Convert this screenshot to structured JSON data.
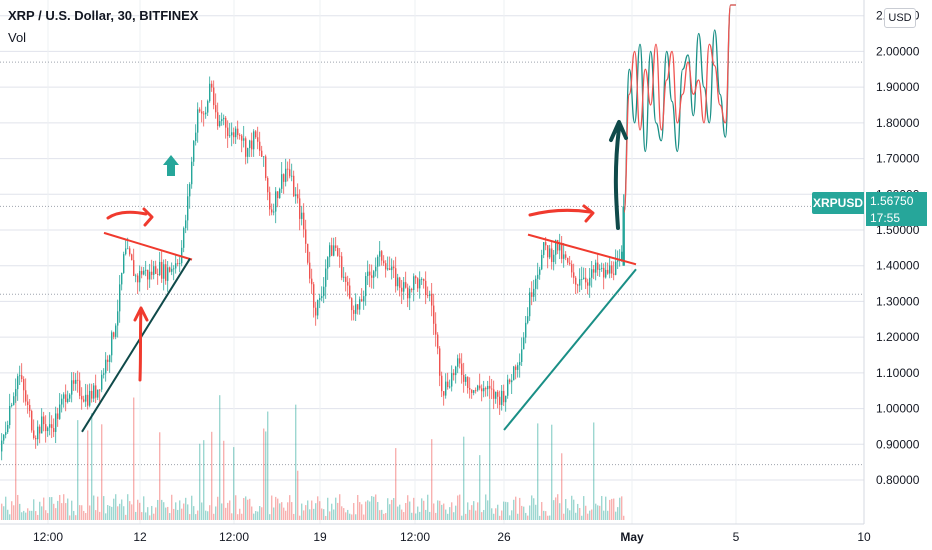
{
  "header": {
    "title": "XRP / U.S. Dollar, 30, BITFINEX",
    "indicator": "Vol"
  },
  "currency_button": "USD",
  "price_tag": {
    "symbol": "XRPUSD",
    "price": "1.56750",
    "countdown": "17:55"
  },
  "colors": {
    "up": "#26a69a",
    "down": "#ef5350",
    "drawing_red": "#f03a2e",
    "drawing_teal": "#1a8f86",
    "drawing_dark": "#0f4a4a",
    "grid": "#e0e3eb",
    "axis_text": "#131722"
  },
  "chart_data": {
    "type": "candlestick",
    "yaxis": {
      "ticks": [
        "2.10000",
        "2.00000",
        "1.90000",
        "1.80000",
        "1.70000",
        "1.60000",
        "1.50000",
        "1.40000",
        "1.30000",
        "1.20000",
        "1.10000",
        "1.00000",
        "0.90000",
        "0.80000"
      ],
      "ylim": [
        0.73,
        2.13
      ]
    },
    "xaxis": {
      "ticks": [
        "12:00",
        "12",
        "12:00",
        "19",
        "12:00",
        "26",
        "May",
        "5",
        "10"
      ]
    },
    "horizontal_levels": [
      1.97,
      1.566,
      1.32,
      0.843
    ],
    "price_path": [
      [
        0,
        0.88
      ],
      [
        10,
        1.02
      ],
      [
        18,
        1.1
      ],
      [
        26,
        1.01
      ],
      [
        34,
        0.93
      ],
      [
        42,
        0.96
      ],
      [
        50,
        0.94
      ],
      [
        58,
        0.99
      ],
      [
        66,
        1.05
      ],
      [
        76,
        1.06
      ],
      [
        86,
        1.03
      ],
      [
        96,
        1.05
      ],
      [
        104,
        1.12
      ],
      [
        112,
        1.2
      ],
      [
        118,
        1.3
      ],
      [
        124,
        1.44
      ],
      [
        130,
        1.41
      ],
      [
        136,
        1.36
      ],
      [
        142,
        1.39
      ],
      [
        148,
        1.37
      ],
      [
        156,
        1.4
      ],
      [
        164,
        1.38
      ],
      [
        172,
        1.4
      ],
      [
        180,
        1.43
      ],
      [
        186,
        1.55
      ],
      [
        192,
        1.72
      ],
      [
        198,
        1.86
      ],
      [
        204,
        1.8
      ],
      [
        210,
        1.93
      ],
      [
        216,
        1.78
      ],
      [
        222,
        1.82
      ],
      [
        230,
        1.76
      ],
      [
        238,
        1.79
      ],
      [
        246,
        1.72
      ],
      [
        254,
        1.76
      ],
      [
        262,
        1.7
      ],
      [
        270,
        1.55
      ],
      [
        278,
        1.62
      ],
      [
        286,
        1.68
      ],
      [
        294,
        1.6
      ],
      [
        302,
        1.52
      ],
      [
        308,
        1.4
      ],
      [
        314,
        1.28
      ],
      [
        320,
        1.3
      ],
      [
        326,
        1.42
      ],
      [
        334,
        1.46
      ],
      [
        342,
        1.38
      ],
      [
        350,
        1.3
      ],
      [
        358,
        1.27
      ],
      [
        366,
        1.36
      ],
      [
        374,
        1.4
      ],
      [
        382,
        1.43
      ],
      [
        390,
        1.38
      ],
      [
        398,
        1.35
      ],
      [
        406,
        1.33
      ],
      [
        414,
        1.36
      ],
      [
        422,
        1.34
      ],
      [
        430,
        1.31
      ],
      [
        436,
        1.18
      ],
      [
        442,
        1.05
      ],
      [
        450,
        1.09
      ],
      [
        458,
        1.12
      ],
      [
        466,
        1.08
      ],
      [
        474,
        1.05
      ],
      [
        482,
        1.06
      ],
      [
        490,
        1.04
      ],
      [
        498,
        1.03
      ],
      [
        506,
        1.05
      ],
      [
        514,
        1.12
      ],
      [
        520,
        1.16
      ],
      [
        526,
        1.26
      ],
      [
        532,
        1.35
      ],
      [
        538,
        1.4
      ],
      [
        544,
        1.45
      ],
      [
        550,
        1.43
      ],
      [
        556,
        1.46
      ],
      [
        562,
        1.42
      ],
      [
        568,
        1.4
      ],
      [
        574,
        1.34
      ],
      [
        580,
        1.38
      ],
      [
        588,
        1.36
      ],
      [
        596,
        1.39
      ],
      [
        604,
        1.37
      ],
      [
        612,
        1.4
      ],
      [
        618,
        1.39
      ],
      [
        622,
        1.43
      ],
      [
        624,
        1.566
      ]
    ],
    "volume_path": [
      [
        0,
        0.842
      ],
      [
        60,
        0.84
      ],
      [
        110,
        0.838
      ],
      [
        140,
        0.846
      ],
      [
        200,
        0.837
      ],
      [
        240,
        0.841
      ],
      [
        300,
        0.839
      ],
      [
        360,
        0.841
      ],
      [
        436,
        0.843
      ],
      [
        500,
        0.838
      ],
      [
        560,
        0.84
      ],
      [
        620,
        0.842
      ]
    ],
    "projection": {
      "x_start": 624,
      "x_end": 736,
      "series": [
        {
          "values": [
            1.55,
            1.95,
            1.8,
            2.02,
            1.72,
            2.0,
            1.8,
            1.75,
            2.0,
            1.86,
            1.72,
            1.95,
            1.99,
            1.82,
            2.05,
            1.9,
            1.8,
            2.06,
            1.88,
            1.76,
            2.13,
            2.13
          ]
        },
        {
          "values": [
            1.55,
            1.88,
            2.0,
            1.78,
            1.95,
            1.85,
            2.02,
            1.78,
            1.92,
            2.0,
            1.8,
            1.88,
            1.97,
            1.88,
            1.92,
            1.8,
            2.02,
            1.96,
            1.85,
            1.8,
            2.13,
            2.13
          ]
        }
      ]
    },
    "drawings": {
      "trendlines": [
        {
          "color": "red",
          "points": [
            [
              104,
              1.492
            ],
            [
              192,
              1.417
            ]
          ]
        },
        {
          "color": "dark",
          "points": [
            [
              82,
              0.935
            ],
            [
              190,
              1.42
            ]
          ]
        },
        {
          "color": "red",
          "points": [
            [
              528,
              1.487
            ],
            [
              636,
              1.404
            ]
          ]
        },
        {
          "color": "teal",
          "points": [
            [
              504,
              0.94
            ],
            [
              636,
              1.39
            ]
          ]
        }
      ]
    }
  }
}
